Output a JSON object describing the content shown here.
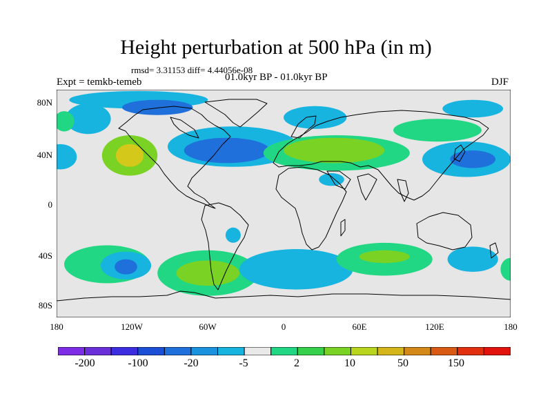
{
  "header": {
    "title": "Height perturbation at 500 hPa (in m)",
    "stats": "rmsd= 3.31153 diff= 4.44056e-08",
    "expt": "Expt = temkb-temeb",
    "period": "01.0kyr BP - 01.0kyr BP",
    "season": "DJF"
  },
  "axes": {
    "y_ticks": [
      "80N",
      "40N",
      "0",
      "40S",
      "80S"
    ],
    "x_ticks": [
      "180",
      "120W",
      "60W",
      "0",
      "60E",
      "120E",
      "180"
    ],
    "lon_range": [
      -180,
      180
    ],
    "lat_range": [
      -90,
      90
    ]
  },
  "colorbar": {
    "labels": [
      "-200",
      "-100",
      "-20",
      "-5",
      "2",
      "10",
      "50",
      "150"
    ],
    "colors": [
      "#7d2de6",
      "#6a2fd8",
      "#3c2ee0",
      "#1a4fd6",
      "#1f70db",
      "#1b92de",
      "#18b4e0",
      "#e9e9e9",
      "#22d783",
      "#36d04a",
      "#7ad225",
      "#b9d51e",
      "#d4b51a",
      "#d38818",
      "#d85a13",
      "#e0300e",
      "#e2120c"
    ]
  },
  "anomalies": [
    {
      "lon": -122,
      "lat": 38,
      "rx": 22,
      "ry": 16,
      "level": 10
    },
    {
      "lon": -122,
      "lat": 38,
      "rx": 11,
      "ry": 9,
      "level": 50
    },
    {
      "lon": -40,
      "lat": 45,
      "rx": 52,
      "ry": 16,
      "level": -5
    },
    {
      "lon": -45,
      "lat": 42,
      "rx": 34,
      "ry": 10,
      "level": -20
    },
    {
      "lon": -115,
      "lat": 82,
      "rx": 55,
      "ry": 7,
      "level": -5
    },
    {
      "lon": -100,
      "lat": 76,
      "rx": 28,
      "ry": 6,
      "level": -20
    },
    {
      "lon": -155,
      "lat": 67,
      "rx": 18,
      "ry": 12,
      "level": -5
    },
    {
      "lon": -174,
      "lat": 65,
      "rx": 8,
      "ry": 8,
      "level": 2
    },
    {
      "lon": 42,
      "lat": 40,
      "rx": 58,
      "ry": 14,
      "level": 2
    },
    {
      "lon": 40,
      "lat": 42,
      "rx": 40,
      "ry": 10,
      "level": 10
    },
    {
      "lon": 25,
      "lat": 68,
      "rx": 25,
      "ry": 9,
      "level": -5
    },
    {
      "lon": 122,
      "lat": 58,
      "rx": 35,
      "ry": 9,
      "level": 2
    },
    {
      "lon": 145,
      "lat": 35,
      "rx": 35,
      "ry": 14,
      "level": -5
    },
    {
      "lon": 150,
      "lat": 35,
      "rx": 18,
      "ry": 7,
      "level": -20
    },
    {
      "lon": -177,
      "lat": 37,
      "rx": 13,
      "ry": 10,
      "level": -5
    },
    {
      "lon": 150,
      "lat": 75,
      "rx": 24,
      "ry": 7,
      "level": -5
    },
    {
      "lon": 38,
      "lat": 19,
      "rx": 10,
      "ry": 5,
      "level": -5
    },
    {
      "lon": -140,
      "lat": -48,
      "rx": 34,
      "ry": 15,
      "level": 2
    },
    {
      "lon": -125,
      "lat": -49,
      "rx": 20,
      "ry": 11,
      "level": -5
    },
    {
      "lon": -125,
      "lat": -50,
      "rx": 9,
      "ry": 6,
      "level": -20
    },
    {
      "lon": -60,
      "lat": -55,
      "rx": 40,
      "ry": 18,
      "level": 2
    },
    {
      "lon": -60,
      "lat": -55,
      "rx": 25,
      "ry": 10,
      "level": 10
    },
    {
      "lon": -40,
      "lat": -25,
      "rx": 6,
      "ry": 6,
      "level": -5
    },
    {
      "lon": 10,
      "lat": -52,
      "rx": 45,
      "ry": 16,
      "level": -5
    },
    {
      "lon": 80,
      "lat": -44,
      "rx": 38,
      "ry": 13,
      "level": 2
    },
    {
      "lon": 80,
      "lat": -42,
      "rx": 20,
      "ry": 5,
      "level": 10
    },
    {
      "lon": 150,
      "lat": -44,
      "rx": 20,
      "ry": 10,
      "level": -5
    },
    {
      "lon": 180,
      "lat": -52,
      "rx": 8,
      "ry": 9,
      "level": 2
    }
  ]
}
